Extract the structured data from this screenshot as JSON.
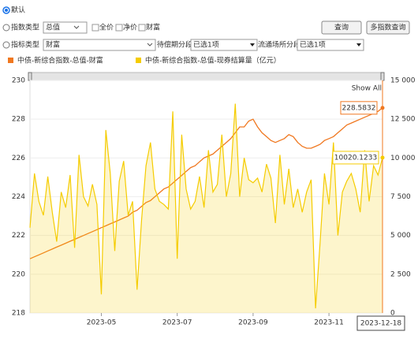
{
  "ui": {
    "default_option": "默认",
    "index_type": {
      "label": "指数类型",
      "selected": "总值",
      "checkboxes": [
        "全价",
        "净价",
        "财富"
      ]
    },
    "buttons": [
      "查询",
      "多指数查询"
    ],
    "indicator_type": {
      "label": "指标类型",
      "selected": "财富"
    },
    "maturity_segment": {
      "label": "待偿期分段",
      "selected": "已选1项"
    },
    "venue_segment": {
      "label": "流通场所分段",
      "selected": "已选1项"
    },
    "show_all": "Show All"
  },
  "chart_data": {
    "type": "line",
    "crosshair_label": "2023-12-18",
    "xlim": [
      0,
      79
    ],
    "xticks": [
      {
        "value": 16,
        "label": "2023-05"
      },
      {
        "value": 33,
        "label": "2023-07"
      },
      {
        "value": 50,
        "label": "2023-09"
      },
      {
        "value": 67,
        "label": "2023-11"
      }
    ],
    "ylim": [
      218,
      230
    ],
    "yticks": [
      218,
      220,
      222,
      224,
      226,
      228,
      230
    ],
    "y2lim": [
      0,
      15000
    ],
    "y2ticks": [
      {
        "value": 0,
        "label": "0"
      },
      {
        "value": 2500,
        "label": "2 500"
      },
      {
        "value": 5000,
        "label": "5 000"
      },
      {
        "value": 7500,
        "label": "7 500"
      },
      {
        "value": 10000,
        "label": "10 000"
      },
      {
        "value": 12500,
        "label": "12 500"
      },
      {
        "value": 15000,
        "label": "15 000"
      }
    ],
    "grid": true,
    "series": [
      {
        "name": "中债-新综合指数-总值-财富",
        "color": "#f07820",
        "values": [
          220.8,
          220.9,
          221.0,
          221.1,
          221.2,
          221.3,
          221.4,
          221.5,
          221.6,
          221.7,
          221.8,
          221.9,
          222.0,
          222.1,
          222.2,
          222.3,
          222.4,
          222.5,
          222.6,
          222.7,
          222.8,
          222.9,
          223.0,
          223.2,
          223.3,
          223.5,
          223.7,
          223.8,
          224.0,
          224.2,
          224.4,
          224.5,
          224.7,
          224.9,
          225.1,
          225.3,
          225.5,
          225.6,
          225.8,
          226.0,
          226.1,
          226.2,
          226.4,
          226.6,
          226.8,
          227.0,
          227.3,
          227.6,
          227.6,
          227.9,
          228.0,
          227.6,
          227.3,
          227.1,
          226.9,
          226.8,
          226.9,
          227.0,
          227.2,
          227.1,
          226.8,
          226.6,
          226.5,
          226.5,
          226.6,
          226.7,
          226.9,
          227.0,
          227.1,
          227.3,
          227.5,
          227.7,
          227.8,
          227.9,
          228.0,
          228.1,
          228.2,
          228.3,
          228.4,
          228.5832
        ]
      },
      {
        "name": "中债-新综合指数-总值-现券结算量（亿元）",
        "color": "#f5cc00",
        "axis": "y2",
        "values": [
          5500,
          9000,
          7200,
          6300,
          8800,
          6500,
          4600,
          7800,
          6800,
          8900,
          4200,
          10200,
          7500,
          6900,
          8300,
          7000,
          1200,
          11800,
          9000,
          4000,
          8500,
          9800,
          6300,
          7200,
          1500,
          6000,
          9500,
          11000,
          8000,
          7200,
          7000,
          6700,
          13000,
          3500,
          11500,
          8000,
          6700,
          7200,
          8800,
          6800,
          10500,
          7800,
          8300,
          11500,
          7500,
          9000,
          13500,
          7500,
          10000,
          8600,
          8400,
          8700,
          7800,
          9600,
          8700,
          5800,
          10200,
          7000,
          9300,
          6800,
          8000,
          6500,
          7800,
          8600,
          300,
          4500,
          9000,
          7000,
          11000,
          5000,
          7800,
          8500,
          9000,
          8000,
          6500,
          10500,
          7200,
          9500,
          8900,
          10020.1233
        ]
      }
    ]
  }
}
